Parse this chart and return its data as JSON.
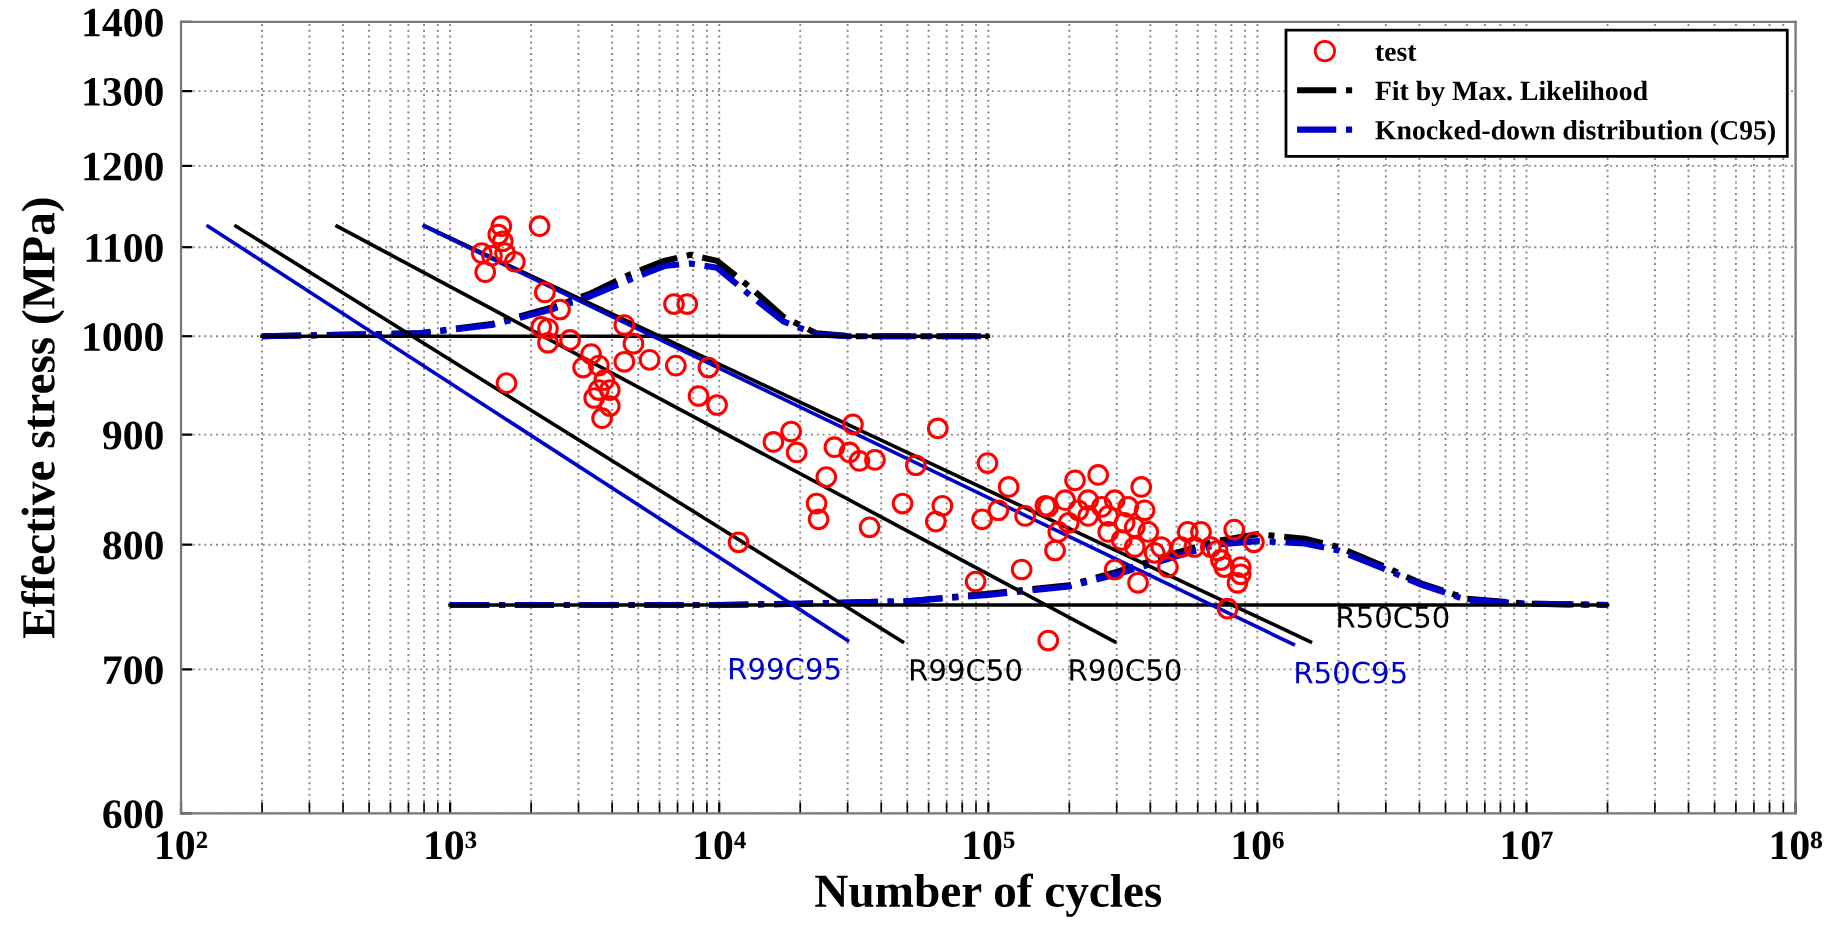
{
  "chart_data": {
    "type": "scatter",
    "xlabel": "Number of cycles",
    "ylabel": "Effective stress (MPa)",
    "log": "xy",
    "grid": true,
    "legend": "top right",
    "xlim": [
      100,
      100000000
    ],
    "ylim": [
      600,
      1400
    ],
    "xticks": [
      {
        "value": 100,
        "label": "10²"
      },
      {
        "value": 1000,
        "label": "10³"
      },
      {
        "value": 10000,
        "label": "10⁴"
      },
      {
        "value": 100000,
        "label": "10⁵"
      },
      {
        "value": 1000000,
        "label": "10⁶"
      },
      {
        "value": 10000000,
        "label": "10⁷"
      },
      {
        "value": 100000000,
        "label": "10⁸"
      }
    ],
    "yticks": [
      600,
      700,
      800,
      900,
      1000,
      1100,
      1200,
      1300,
      1400
    ],
    "series": [
      {
        "name": "test",
        "marker": "circle",
        "color": "#ff0000",
        "x": [
          1550,
          1510,
          1570,
          1310,
          1430,
          1600,
          1740,
          1350,
          2150,
          2250,
          2180,
          2310,
          2310,
          2790,
          2560,
          3340,
          3120,
          3570,
          3740,
          3570,
          3430,
          3920,
          3670,
          3920,
          4440,
          4800,
          4440,
          5510,
          6790,
          7610,
          6900,
          9120,
          8380,
          9820,
          1620,
          15900,
          18500,
          19400,
          25000,
          26800,
          30500,
          33200,
          37900,
          31400,
          53800,
          64900,
          99300,
          119000,
          11800,
          23000,
          23400,
          36200,
          48000,
          63800,
          67500,
          89700,
          94800,
          109000,
          133000,
          137000,
          163000,
          167000,
          177000,
          182000,
          210000,
          256000,
          279000,
          295000,
          360000,
          370000,
          193000,
          216000,
          235000,
          264000,
          295000,
          331000,
          199000,
          279000,
          313000,
          350000,
          393000,
          415000,
          465000,
          350000,
          381000,
          520000,
          551000,
          617000,
          731000,
          753000,
          775000,
          820000,
          867000,
          843000,
          867000,
          971000,
          711000,
          583000,
          671000,
          439000,
          235000,
          167000,
          321000
        ],
        "values": [
          1125,
          1115,
          1107,
          1093,
          1090,
          1093,
          1083,
          1071,
          1125,
          1048,
          1010,
          1008,
          993,
          996,
          1029,
          981,
          967,
          969,
          954,
          944,
          936,
          944,
          916,
          928,
          1012,
          992,
          973,
          975,
          1035,
          1035,
          969,
          967,
          938,
          929,
          951,
          893,
          903,
          883,
          860,
          888,
          883,
          875,
          876,
          910,
          871,
          906,
          873,
          851,
          802,
          836,
          822,
          815,
          836,
          820,
          834,
          769,
          822,
          830,
          779,
          825,
          834,
          722,
          795,
          811,
          857,
          862,
          811,
          779,
          768,
          851,
          839,
          830,
          825,
          833,
          839,
          833,
          819,
          825,
          804,
          798,
          811,
          793,
          781,
          815,
          830,
          798,
          811,
          811,
          787,
          781,
          747,
          813,
          781,
          768,
          775,
          802,
          795,
          798,
          798,
          798,
          839,
          833,
          819
        ]
      },
      {
        "name": "Fit by Max. Likelihood",
        "type": "line",
        "line_style": "dashdot",
        "color": "#000000",
        "x": [
          200,
          764,
          1425,
          2375,
          3340,
          4700,
          6240,
          7830,
          9820,
          13000,
          17300,
          23000,
          30500,
          100000
        ],
        "values": [
          1000,
          1003,
          1013,
          1031,
          1047,
          1069,
          1084,
          1091,
          1084,
          1054,
          1021,
          1003,
          1000,
          1000
        ]
      },
      {
        "type": "line",
        "line_style": "dashdot",
        "color": "#000000",
        "x": [
          1000,
          10000,
          20000,
          50000,
          100000,
          200000,
          300000,
          500000,
          700000,
          1000000,
          1500000,
          2000000,
          3000000,
          4000000,
          6000000,
          10000000,
          20000000
        ],
        "values": [
          750,
          750,
          751,
          753,
          759,
          766,
          777,
          793,
          803,
          809,
          805,
          798,
          781,
          768,
          755,
          751,
          750
        ]
      },
      {
        "name": "Knocked-down distribution (C95)",
        "type": "line",
        "line_style": "dashdot",
        "color": "#0000cc",
        "x": [
          200,
          764,
          1425,
          2375,
          3340,
          4700,
          6240,
          7830,
          9820,
          13000,
          17300,
          23000,
          30500,
          100000
        ],
        "values": [
          1000,
          1003,
          1012,
          1029,
          1044,
          1063,
          1078,
          1081,
          1076,
          1045,
          1016,
          1002,
          1000,
          1000
        ]
      },
      {
        "type": "line",
        "line_style": "dashdot",
        "color": "#0000cc",
        "x": [
          1000,
          10000,
          20000,
          50000,
          100000,
          200000,
          300000,
          500000,
          700000,
          1000000,
          1500000,
          2000000,
          3000000,
          4000000,
          6000000,
          10000000,
          20000000
        ],
        "values": [
          750,
          750,
          751,
          753,
          758,
          765,
          775,
          790,
          800,
          803,
          801,
          795,
          779,
          767,
          754,
          751,
          750
        ]
      },
      {
        "type": "line",
        "line_style": "solid",
        "color": "#000000",
        "x": [
          200,
          100000
        ],
        "values": [
          1000,
          1000
        ]
      },
      {
        "type": "line",
        "line_style": "solid",
        "color": "#000000",
        "x": [
          1000,
          20000000
        ],
        "values": [
          750,
          750
        ]
      },
      {
        "name": "R99C95",
        "type": "line",
        "line_style": "solid",
        "color": "#0000cc",
        "x": [
          126,
          30000
        ],
        "values": [
          1125,
          722
        ]
      },
      {
        "name": "R99C50",
        "type": "line",
        "line_style": "solid",
        "color": "#000000",
        "x": [
          160,
          48000
        ],
        "values": [
          1125,
          721
        ]
      },
      {
        "name": "R90C50",
        "type": "line",
        "line_style": "solid",
        "color": "#000000",
        "x": [
          380,
          295000
        ],
        "values": [
          1125,
          721
        ]
      },
      {
        "name": "R50C50",
        "type": "line",
        "line_style": "solid",
        "color": "#000000",
        "x": [
          809,
          1574000
        ],
        "values": [
          1125,
          721
        ]
      },
      {
        "name": "R50C95",
        "type": "line",
        "line_style": "solid",
        "color": "#0000cc",
        "x": [
          800,
          1360000
        ],
        "values": [
          1125,
          719
        ]
      }
    ]
  }
}
